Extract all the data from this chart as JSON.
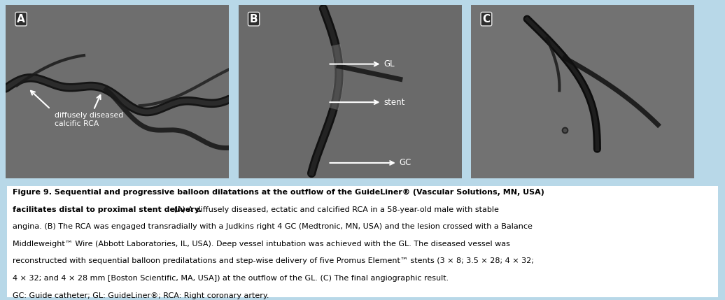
{
  "background_color": "#b8d8e8",
  "figure_width": 10.36,
  "figure_height": 4.29,
  "panel_labels": [
    "A",
    "B",
    "C"
  ],
  "panel_bg": "#787878",
  "caption_fontsize": 8.0,
  "text_color": "#000000",
  "white": "#ffffff",
  "caption_line1_bold": "Figure 9. Sequential and progressive balloon dilatations at the outflow of the GuideLiner® (Vascular Solutions, MN, USA)",
  "caption_line2_bold": "facilitates distal to proximal stent delivery.",
  "caption_line2_normal": " (A) A diffusely diseased, ectatic and calcified RCA in a 58-year-old male with stable",
  "caption_line3": "angina. (B) The RCA was engaged transradially with a Judkins right 4 GC (Medtronic, MN, USA) and the lesion crossed with a Balance",
  "caption_line4": "Middleweight™ Wire (Abbott Laboratories, IL, USA). Deep vessel intubation was achieved with the GL. The diseased vessel was",
  "caption_line5": "reconstructed with sequential balloon predilatations and step-wise delivery of five Promus Element™ stents (3 × 8; 3.5 × 28; 4 × 32;",
  "caption_line6": "4 × 32; and 4 × 28 mm [Boston Scientific, MA, USA]) at the outflow of the GL. (C) The final angiographic result.",
  "caption_abbrev": "GC: Guide catheter; GL: GuideLiner®; RCA: Right coronary artery."
}
